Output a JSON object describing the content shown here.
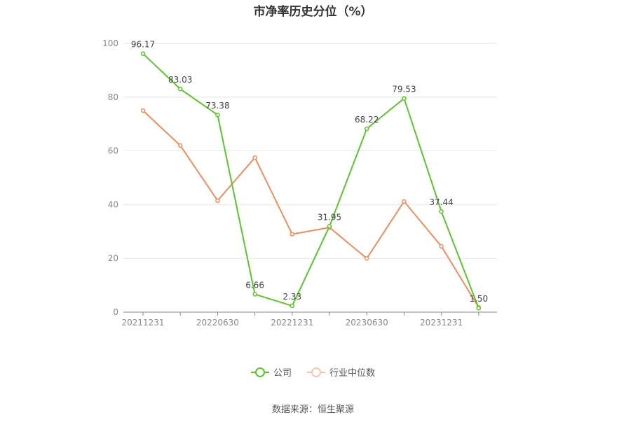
{
  "title": "市净率历史分位（%）",
  "source": "数据来源：恒生聚源",
  "colors": {
    "company": "#5cc42c",
    "industry": "#f08d5e",
    "grid": "#e6e6e6",
    "axis": "#888888",
    "tick_text": "#888888",
    "label_text": "#444444"
  },
  "legend": {
    "company": "公司",
    "industry": "行业中位数",
    "company_icon": "circle-line-icon",
    "industry_icon": "circle-line-icon"
  },
  "chart_data": {
    "type": "line",
    "title": "市净率历史分位（%）",
    "x": [
      "20211231",
      "20220331",
      "20220630",
      "20220930",
      "20221231",
      "20230331",
      "20230630",
      "20230930",
      "20231231",
      "20240331"
    ],
    "x_tick_labels": [
      "20211231",
      "20220630",
      "20221231",
      "20230630",
      "20231231"
    ],
    "y_ticks": [
      "0",
      "20",
      "40",
      "60",
      "80",
      "100"
    ],
    "ylim": [
      0,
      100
    ],
    "grid": true,
    "legend_position": "bottom",
    "series": [
      {
        "name": "公司",
        "values": [
          96.17,
          83.03,
          73.38,
          6.66,
          2.33,
          31.95,
          68.22,
          79.53,
          37.44,
          1.5
        ],
        "labels": [
          "96.17",
          "83.03",
          "73.38",
          "6.66",
          "2.33",
          "31.95",
          "68.22",
          "79.53",
          "37.44",
          "1.50"
        ]
      },
      {
        "name": "行业中位数",
        "values": [
          75,
          62,
          41.5,
          57.5,
          29,
          31.5,
          20,
          41.2,
          24.5,
          1.8
        ]
      }
    ]
  }
}
